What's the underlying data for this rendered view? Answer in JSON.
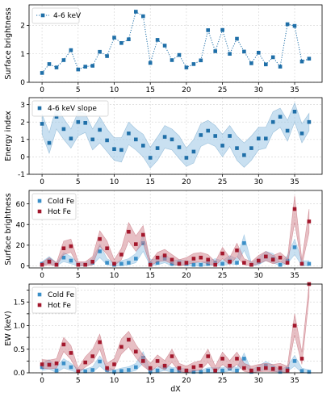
{
  "chart_data": [
    {
      "type": "line",
      "ylabel": "Surface brightness",
      "xlabel": "",
      "xlim": [
        -1.8,
        38.8
      ],
      "ylim": [
        0,
        2.72
      ],
      "xticks": [
        0,
        5,
        10,
        15,
        20,
        25,
        30,
        35
      ],
      "yticks": [
        0,
        1,
        2
      ],
      "grid": true,
      "legend": "top-left",
      "series": [
        {
          "name": "4-6 keV",
          "color": "#1f6fa8",
          "style": "dotted-line-square-markers",
          "x": [
            0,
            1,
            2,
            3,
            4,
            5,
            6,
            7,
            8,
            9,
            10,
            11,
            12,
            13,
            14,
            15,
            16,
            17,
            18,
            19,
            20,
            21,
            22,
            23,
            24,
            25,
            26,
            27,
            28,
            29,
            30,
            31,
            32,
            33,
            34,
            35,
            36,
            37
          ],
          "y": [
            0.33,
            0.64,
            0.52,
            0.78,
            1.13,
            0.45,
            0.55,
            0.58,
            1.07,
            0.92,
            1.57,
            1.38,
            1.51,
            2.48,
            2.32,
            0.68,
            1.49,
            1.29,
            0.78,
            0.96,
            0.52,
            0.64,
            0.77,
            1.83,
            1.09,
            1.84,
            1.0,
            1.53,
            1.08,
            0.67,
            1.04,
            0.63,
            0.88,
            0.55,
            2.04,
            1.98,
            0.73,
            0.83
          ]
        }
      ]
    },
    {
      "type": "line",
      "ylabel": "Energy index",
      "xlabel": "",
      "xlim": [
        -1.8,
        38.8
      ],
      "ylim": [
        -1,
        3.4
      ],
      "xticks": [
        0,
        5,
        10,
        15,
        20,
        25,
        30,
        35
      ],
      "yticks": [
        -1,
        0,
        1,
        2,
        3
      ],
      "grid": true,
      "legend": "top-left",
      "series": [
        {
          "name": "4-6 keV slope",
          "color": "#1f6fa8",
          "band_color": "#9cc6e6",
          "style": "square-markers-with-band",
          "x": [
            0,
            1,
            2,
            3,
            4,
            5,
            6,
            7,
            8,
            9,
            10,
            11,
            12,
            13,
            14,
            15,
            16,
            17,
            18,
            19,
            20,
            21,
            22,
            23,
            24,
            25,
            26,
            27,
            28,
            29,
            30,
            31,
            32,
            33,
            34,
            35,
            36,
            37
          ],
          "y": [
            1.9,
            0.8,
            2.3,
            1.6,
            1.05,
            2.0,
            1.95,
            1.0,
            1.55,
            0.95,
            0.45,
            0.4,
            1.35,
            1.0,
            0.65,
            -0.05,
            0.5,
            1.15,
            1.0,
            0.55,
            -0.05,
            0.3,
            1.25,
            1.5,
            1.2,
            0.65,
            1.2,
            0.5,
            0.1,
            0.5,
            1.05,
            1.05,
            2.0,
            2.3,
            1.5,
            2.6,
            1.35,
            2.0
          ],
          "lower": [
            1.3,
            0.2,
            1.6,
            1.0,
            0.5,
            1.2,
            1.4,
            0.4,
            0.8,
            0.3,
            -0.2,
            -0.3,
            0.7,
            0.4,
            0.0,
            -0.65,
            -0.2,
            0.5,
            0.4,
            -0.1,
            -0.55,
            -0.35,
            0.6,
            0.8,
            0.6,
            0.0,
            0.6,
            -0.2,
            -0.6,
            -0.2,
            0.4,
            0.5,
            1.4,
            1.7,
            0.9,
            2.0,
            0.8,
            1.5
          ],
          "upper": [
            2.45,
            1.4,
            2.9,
            2.2,
            1.6,
            2.6,
            2.5,
            1.6,
            2.3,
            1.6,
            1.1,
            1.1,
            2.0,
            1.6,
            1.3,
            0.55,
            1.15,
            1.8,
            1.6,
            1.2,
            0.5,
            1.0,
            1.9,
            2.1,
            1.8,
            1.3,
            1.8,
            1.2,
            0.8,
            1.2,
            1.7,
            1.7,
            2.6,
            2.8,
            2.1,
            3.1,
            1.9,
            2.5
          ]
        }
      ]
    },
    {
      "type": "scatter",
      "ylabel": "Surface brightness",
      "xlabel": "",
      "xlim": [
        -1.8,
        38.8
      ],
      "ylim": [
        -2,
        73
      ],
      "xticks": [
        0,
        5,
        10,
        15,
        20,
        25,
        30,
        35
      ],
      "yticks": [
        0,
        20,
        40,
        60
      ],
      "grid": true,
      "legend": "top-left",
      "series": [
        {
          "name": "Cold Fe",
          "color": "#3a8fc8",
          "band_color": "#9cc6e6",
          "x": [
            0,
            1,
            2,
            3,
            4,
            5,
            6,
            7,
            8,
            9,
            10,
            11,
            12,
            13,
            14,
            15,
            16,
            17,
            18,
            19,
            20,
            21,
            22,
            23,
            24,
            25,
            26,
            27,
            28,
            29,
            30,
            31,
            32,
            33,
            34,
            35,
            36,
            37
          ],
          "y": [
            2,
            5,
            1,
            8,
            5,
            1,
            1,
            3,
            14,
            3,
            1,
            2,
            3,
            7,
            22,
            2,
            3,
            7,
            2,
            3,
            2,
            1,
            1,
            2,
            3,
            2,
            5,
            3,
            22,
            1,
            4,
            9,
            7,
            1,
            5,
            18,
            2,
            2
          ],
          "lower": [
            1,
            2,
            0,
            4,
            2,
            0,
            0,
            1,
            8,
            1,
            0,
            0,
            1,
            3,
            14,
            0,
            1,
            3,
            0,
            1,
            0,
            0,
            0,
            0,
            1,
            0,
            2,
            1,
            15,
            0,
            1,
            5,
            3,
            0,
            2,
            11,
            0,
            0
          ],
          "upper": [
            4,
            9,
            3,
            13,
            9,
            3,
            3,
            7,
            21,
            7,
            3,
            5,
            7,
            12,
            30,
            6,
            7,
            12,
            5,
            6,
            5,
            4,
            3,
            5,
            7,
            5,
            10,
            7,
            30,
            3,
            8,
            14,
            12,
            3,
            10,
            26,
            5,
            5
          ]
        },
        {
          "name": "Hot Fe",
          "color": "#a3172c",
          "band_color": "#d48a94",
          "x": [
            0,
            1,
            2,
            3,
            4,
            5,
            6,
            7,
            8,
            9,
            10,
            11,
            12,
            13,
            14,
            15,
            16,
            17,
            18,
            19,
            20,
            21,
            22,
            23,
            24,
            25,
            26,
            27,
            28,
            29,
            30,
            31,
            32,
            33,
            34,
            35,
            36,
            37
          ],
          "y": [
            1,
            4,
            1,
            17,
            19,
            1,
            1,
            4,
            26,
            17,
            2,
            11,
            33,
            21,
            30,
            1,
            8,
            10,
            6,
            2,
            3,
            7,
            8,
            6,
            1,
            12,
            4,
            15,
            3,
            1,
            5,
            9,
            6,
            8,
            3,
            55,
            2,
            43
          ],
          "lower": [
            0,
            1,
            0,
            11,
            13,
            0,
            0,
            1,
            19,
            11,
            0,
            6,
            24,
            14,
            22,
            0,
            4,
            5,
            2,
            0,
            1,
            3,
            4,
            2,
            0,
            7,
            1,
            9,
            1,
            0,
            2,
            5,
            2,
            4,
            1,
            42,
            0,
            32
          ],
          "upper": [
            3,
            8,
            3,
            24,
            26,
            4,
            4,
            9,
            34,
            24,
            6,
            17,
            42,
            29,
            39,
            4,
            13,
            16,
            11,
            6,
            8,
            12,
            13,
            11,
            4,
            18,
            8,
            22,
            7,
            4,
            10,
            14,
            10,
            13,
            7,
            68,
            6,
            55
          ]
        }
      ]
    },
    {
      "type": "scatter",
      "ylabel": "EW (keV)",
      "xlabel": "dX",
      "xlim": [
        -1.8,
        38.8
      ],
      "ylim": [
        0,
        1.88
      ],
      "xticks": [
        0,
        5,
        10,
        15,
        20,
        25,
        30,
        35
      ],
      "yticks": [
        0,
        0.25,
        0.5,
        0.75,
        1.0,
        1.25,
        1.5,
        1.75
      ],
      "ytick_labels": [
        "0.0",
        "0.5",
        "1.0",
        "1.5"
      ],
      "grid": true,
      "legend": "top-left",
      "series": [
        {
          "name": "Cold Fe",
          "color": "#3a8fc8",
          "band_color": "#9cc6e6",
          "x": [
            0,
            1,
            2,
            3,
            4,
            5,
            6,
            7,
            8,
            9,
            10,
            11,
            12,
            13,
            14,
            15,
            16,
            17,
            18,
            19,
            20,
            21,
            22,
            23,
            24,
            25,
            26,
            27,
            28,
            29,
            30,
            31,
            32,
            33,
            34,
            35,
            36,
            37
          ],
          "y": [
            0.12,
            0.18,
            0.05,
            0.2,
            0.12,
            0.03,
            0.03,
            0.06,
            0.24,
            0.06,
            0.02,
            0.04,
            0.06,
            0.12,
            0.32,
            0.02,
            0.05,
            0.12,
            0.05,
            0.05,
            0.03,
            0.02,
            0.02,
            0.05,
            0.05,
            0.05,
            0.09,
            0.05,
            0.3,
            0.02,
            0.08,
            0.15,
            0.1,
            0.02,
            0.08,
            0.25,
            0.04,
            0.02
          ],
          "lower": [
            0.05,
            0.08,
            0.0,
            0.1,
            0.05,
            0.0,
            0.0,
            0.01,
            0.14,
            0.01,
            0.0,
            0.0,
            0.01,
            0.05,
            0.2,
            0.0,
            0.01,
            0.05,
            0.01,
            0.01,
            0.0,
            0.0,
            0.0,
            0.01,
            0.01,
            0.01,
            0.04,
            0.01,
            0.18,
            0.0,
            0.03,
            0.07,
            0.04,
            0.0,
            0.03,
            0.14,
            0.0,
            0.0
          ],
          "upper": [
            0.2,
            0.28,
            0.12,
            0.3,
            0.2,
            0.08,
            0.08,
            0.13,
            0.36,
            0.13,
            0.06,
            0.1,
            0.13,
            0.2,
            0.45,
            0.06,
            0.11,
            0.2,
            0.11,
            0.11,
            0.08,
            0.06,
            0.06,
            0.11,
            0.11,
            0.11,
            0.16,
            0.11,
            0.42,
            0.06,
            0.15,
            0.24,
            0.17,
            0.06,
            0.15,
            0.37,
            0.1,
            0.06
          ]
        },
        {
          "name": "Hot Fe",
          "color": "#a3172c",
          "band_color": "#d48a94",
          "x": [
            0,
            1,
            2,
            3,
            4,
            5,
            6,
            7,
            8,
            9,
            10,
            11,
            12,
            13,
            14,
            15,
            16,
            17,
            18,
            19,
            20,
            21,
            22,
            23,
            24,
            25,
            26,
            27,
            28,
            29,
            30,
            31,
            32,
            33,
            34,
            35,
            36,
            37
          ],
          "y": [
            0.18,
            0.17,
            0.2,
            0.6,
            0.42,
            0.03,
            0.22,
            0.35,
            0.65,
            0.1,
            0.18,
            0.55,
            0.7,
            0.45,
            0.25,
            0.1,
            0.25,
            0.15,
            0.35,
            0.1,
            0.05,
            0.12,
            0.15,
            0.35,
            0.05,
            0.3,
            0.15,
            0.3,
            0.1,
            0.05,
            0.08,
            0.1,
            0.08,
            0.1,
            0.05,
            1.0,
            0.3,
            1.88
          ],
          "lower": [
            0.1,
            0.08,
            0.1,
            0.45,
            0.28,
            0.0,
            0.12,
            0.22,
            0.5,
            0.03,
            0.08,
            0.4,
            0.55,
            0.32,
            0.14,
            0.03,
            0.14,
            0.06,
            0.22,
            0.03,
            0.0,
            0.04,
            0.06,
            0.22,
            0.0,
            0.18,
            0.06,
            0.18,
            0.03,
            0.0,
            0.02,
            0.03,
            0.02,
            0.03,
            0.0,
            0.8,
            0.18,
            1.6
          ],
          "upper": [
            0.28,
            0.27,
            0.3,
            0.75,
            0.58,
            0.1,
            0.34,
            0.5,
            0.82,
            0.2,
            0.3,
            0.72,
            0.88,
            0.6,
            0.38,
            0.2,
            0.38,
            0.26,
            0.5,
            0.2,
            0.14,
            0.22,
            0.26,
            0.5,
            0.14,
            0.44,
            0.26,
            0.44,
            0.2,
            0.14,
            0.18,
            0.2,
            0.18,
            0.2,
            0.14,
            1.25,
            0.44,
            1.88
          ]
        }
      ]
    }
  ]
}
